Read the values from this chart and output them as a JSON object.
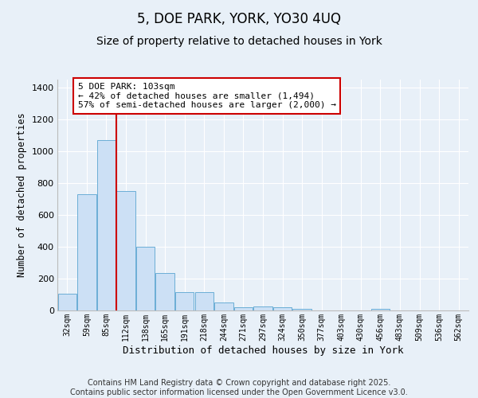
{
  "title": "5, DOE PARK, YORK, YO30 4UQ",
  "subtitle": "Size of property relative to detached houses in York",
  "xlabel": "Distribution of detached houses by size in York",
  "ylabel": "Number of detached properties",
  "bar_labels": [
    "32sqm",
    "59sqm",
    "85sqm",
    "112sqm",
    "138sqm",
    "165sqm",
    "191sqm",
    "218sqm",
    "244sqm",
    "271sqm",
    "297sqm",
    "324sqm",
    "350sqm",
    "377sqm",
    "403sqm",
    "430sqm",
    "456sqm",
    "483sqm",
    "509sqm",
    "536sqm",
    "562sqm"
  ],
  "bar_values": [
    105,
    730,
    1070,
    750,
    400,
    235,
    115,
    115,
    50,
    20,
    25,
    20,
    10,
    0,
    0,
    0,
    10,
    0,
    0,
    0,
    0
  ],
  "bar_color": "#cce0f5",
  "bar_edge_color": "#6baed6",
  "background_color": "#e8f0f8",
  "grid_color": "#ffffff",
  "vline_x_index": 3,
  "vline_color": "#cc0000",
  "annotation_text": "5 DOE PARK: 103sqm\n← 42% of detached houses are smaller (1,494)\n57% of semi-detached houses are larger (2,000) →",
  "annotation_box_facecolor": "#ffffff",
  "annotation_box_edge_color": "#cc0000",
  "ylim": [
    0,
    1450
  ],
  "yticks": [
    0,
    200,
    400,
    600,
    800,
    1000,
    1200,
    1400
  ],
  "footer_line1": "Contains HM Land Registry data © Crown copyright and database right 2025.",
  "footer_line2": "Contains public sector information licensed under the Open Government Licence v3.0.",
  "title_fontsize": 12,
  "subtitle_fontsize": 10,
  "annotation_fontsize": 8,
  "ylabel_fontsize": 8.5,
  "xlabel_fontsize": 9,
  "footer_fontsize": 7
}
